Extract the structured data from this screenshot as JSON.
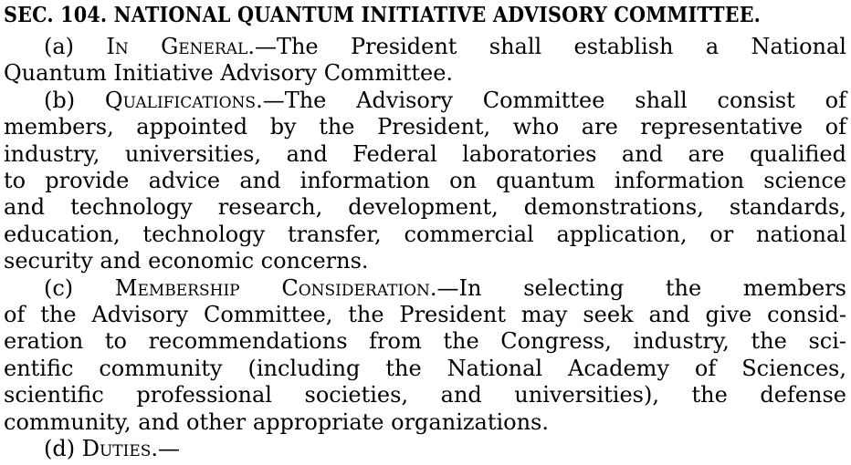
{
  "page": {
    "background_color": "#ffffff",
    "text_color": "#000000"
  },
  "document": {
    "heading": "SEC. 104. NATIONAL QUANTUM INITIATIVE ADVISORY COMMITTEE.",
    "paragraphs": [
      {
        "id": "a",
        "label": "(a)",
        "title": "In General",
        "after_title": ".—The President shall establish a National",
        "continuation_lines": [
          "Quantum Initiative Advisory Committee."
        ]
      },
      {
        "id": "b",
        "label": "(b)",
        "title": "Qualifications",
        "after_title": ".—The Advisory Committee shall consist of",
        "continuation_lines": [
          "members, appointed by the President, who are representative of",
          "industry, universities, and Federal laboratories and are qualified",
          "to provide advice and information on quantum information science",
          "and technology research, development, demonstrations, standards,",
          "education, technology transfer, commercial application, or national",
          "security and economic concerns."
        ]
      },
      {
        "id": "c",
        "label": "(c)",
        "title": "Membership Consideration",
        "after_title": ".—In selecting the members",
        "continuation_lines": [
          "of the Advisory Committee, the President may seek and give consid-",
          "eration to recommendations from the Congress, industry, the sci-",
          "entific community (including the National Academy of Sciences,",
          "scientific professional societies, and universities), the defense",
          "community, and other appropriate organizations."
        ]
      },
      {
        "id": "d",
        "label": "(d)",
        "title": "Duties",
        "after_title": ".—",
        "continuation_lines": []
      }
    ]
  }
}
